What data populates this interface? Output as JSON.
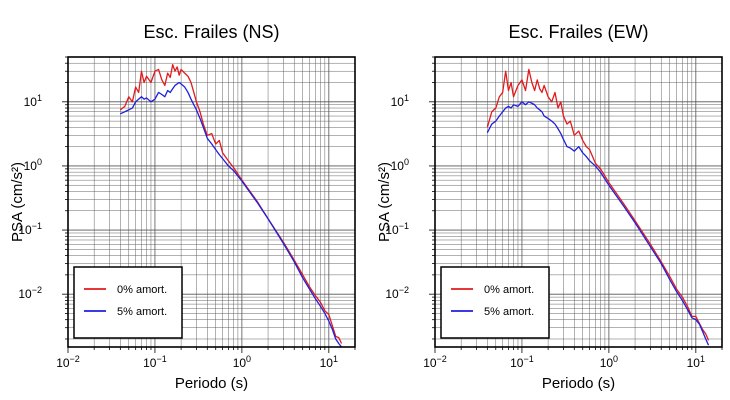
{
  "chart_data": [
    {
      "type": "line",
      "title": "Esc. Frailes (NS)",
      "xlabel": "Periodo (s)",
      "ylabel": "PSA (cm/s²)",
      "xscale": "log",
      "yscale": "log",
      "xlim": [
        0.01,
        20
      ],
      "ylim": [
        0.0015,
        50
      ],
      "grid": true,
      "legend_position": "lower-left",
      "xticks": [
        {
          "base": "10",
          "exp": "−2",
          "value": 0.01
        },
        {
          "base": "10",
          "exp": "−1",
          "value": 0.1
        },
        {
          "base": "10",
          "exp": "0",
          "value": 1
        },
        {
          "base": "10",
          "exp": "1",
          "value": 10
        }
      ],
      "yticks": [
        {
          "base": "10",
          "exp": "−2",
          "value": 0.01
        },
        {
          "base": "10",
          "exp": "−1",
          "value": 0.1
        },
        {
          "base": "10",
          "exp": "0",
          "value": 1
        },
        {
          "base": "10",
          "exp": "1",
          "value": 10
        }
      ],
      "series": [
        {
          "name": "0% amort.",
          "color": "#e31a1c",
          "x": [
            0.04,
            0.045,
            0.05,
            0.055,
            0.06,
            0.065,
            0.07,
            0.075,
            0.08,
            0.09,
            0.1,
            0.11,
            0.12,
            0.13,
            0.14,
            0.15,
            0.16,
            0.17,
            0.18,
            0.19,
            0.2,
            0.22,
            0.24,
            0.26,
            0.28,
            0.3,
            0.33,
            0.36,
            0.4,
            0.45,
            0.5,
            0.55,
            0.6,
            0.7,
            0.8,
            1.0,
            1.5,
            2,
            3,
            4,
            5,
            6,
            7,
            8,
            9,
            10,
            11,
            12,
            13,
            14
          ],
          "y": [
            7.5,
            8.5,
            12,
            10,
            17,
            14,
            30,
            20,
            25,
            20,
            30,
            32,
            22,
            18,
            28,
            24,
            38,
            30,
            35,
            26,
            32,
            28,
            25,
            20,
            14,
            10,
            7,
            4.5,
            3,
            3.2,
            2.2,
            2.5,
            1.6,
            1.2,
            0.95,
            0.6,
            0.28,
            0.15,
            0.065,
            0.034,
            0.02,
            0.013,
            0.0095,
            0.0075,
            0.0055,
            0.0048,
            0.0032,
            0.0022,
            0.0021,
            0.0017
          ]
        },
        {
          "name": "5% amort.",
          "color": "#1f1fe0",
          "x": [
            0.04,
            0.045,
            0.05,
            0.055,
            0.06,
            0.065,
            0.07,
            0.075,
            0.08,
            0.09,
            0.1,
            0.11,
            0.12,
            0.13,
            0.14,
            0.15,
            0.16,
            0.17,
            0.18,
            0.19,
            0.2,
            0.22,
            0.24,
            0.26,
            0.28,
            0.3,
            0.33,
            0.36,
            0.4,
            0.45,
            0.5,
            0.55,
            0.6,
            0.7,
            0.8,
            1.0,
            1.5,
            2,
            3,
            4,
            5,
            6,
            7,
            8,
            9,
            10,
            11,
            12,
            13,
            14
          ],
          "y": [
            6.5,
            7,
            7.5,
            8,
            10,
            11,
            12,
            11,
            11.5,
            10,
            11,
            14,
            13,
            12,
            15,
            14,
            16,
            18,
            19,
            20,
            19,
            17,
            14,
            11,
            9,
            7.5,
            5.5,
            4,
            2.7,
            2.2,
            1.8,
            1.5,
            1.3,
            1.0,
            0.85,
            0.58,
            0.27,
            0.15,
            0.062,
            0.032,
            0.018,
            0.012,
            0.0085,
            0.0065,
            0.005,
            0.0038,
            0.0028,
            0.002,
            0.0017,
            0.0015
          ]
        }
      ]
    },
    {
      "type": "line",
      "title": "Esc. Frailes (EW)",
      "xlabel": "Periodo (s)",
      "ylabel": "PSA (cm/s²)",
      "xscale": "log",
      "yscale": "log",
      "xlim": [
        0.01,
        20
      ],
      "ylim": [
        0.0015,
        50
      ],
      "grid": true,
      "legend_position": "lower-left",
      "xticks": [
        {
          "base": "10",
          "exp": "−2",
          "value": 0.01
        },
        {
          "base": "10",
          "exp": "−1",
          "value": 0.1
        },
        {
          "base": "10",
          "exp": "0",
          "value": 1
        },
        {
          "base": "10",
          "exp": "1",
          "value": 10
        }
      ],
      "yticks": [
        {
          "base": "10",
          "exp": "−2",
          "value": 0.01
        },
        {
          "base": "10",
          "exp": "−1",
          "value": 0.1
        },
        {
          "base": "10",
          "exp": "0",
          "value": 1
        },
        {
          "base": "10",
          "exp": "1",
          "value": 10
        }
      ],
      "series": [
        {
          "name": "0% amort.",
          "color": "#e31a1c",
          "x": [
            0.04,
            0.045,
            0.05,
            0.055,
            0.06,
            0.065,
            0.07,
            0.075,
            0.08,
            0.09,
            0.1,
            0.11,
            0.12,
            0.13,
            0.14,
            0.15,
            0.16,
            0.17,
            0.18,
            0.2,
            0.22,
            0.24,
            0.26,
            0.28,
            0.3,
            0.33,
            0.36,
            0.4,
            0.45,
            0.5,
            0.55,
            0.6,
            0.7,
            0.8,
            1.0,
            1.5,
            2,
            3,
            4,
            5,
            6,
            7,
            8,
            9,
            10,
            11,
            12,
            13,
            14
          ],
          "y": [
            4,
            7,
            8,
            12,
            14,
            30,
            15,
            20,
            12,
            18,
            22,
            15,
            32,
            20,
            15,
            22,
            16,
            14,
            18,
            12,
            10,
            14,
            8,
            10,
            6,
            4.5,
            5,
            3,
            3.5,
            2.5,
            2.0,
            1.8,
            1.1,
            0.9,
            0.55,
            0.25,
            0.14,
            0.06,
            0.032,
            0.019,
            0.012,
            0.009,
            0.0065,
            0.0045,
            0.0045,
            0.0035,
            0.0028,
            0.0024,
            0.0019
          ]
        },
        {
          "name": "5% amort.",
          "color": "#1f1fe0",
          "x": [
            0.04,
            0.045,
            0.05,
            0.055,
            0.06,
            0.065,
            0.07,
            0.075,
            0.08,
            0.09,
            0.1,
            0.11,
            0.12,
            0.13,
            0.14,
            0.15,
            0.16,
            0.17,
            0.18,
            0.2,
            0.22,
            0.24,
            0.26,
            0.28,
            0.3,
            0.33,
            0.36,
            0.4,
            0.45,
            0.5,
            0.55,
            0.6,
            0.7,
            0.8,
            1.0,
            1.5,
            2,
            3,
            4,
            5,
            6,
            7,
            8,
            9,
            10,
            11,
            12,
            13,
            14
          ],
          "y": [
            3.3,
            4.5,
            5,
            6,
            7,
            8,
            8.5,
            8,
            9,
            8.5,
            10,
            9,
            10,
            9.5,
            9,
            8,
            7.5,
            7,
            6,
            5.5,
            5,
            4.5,
            3.8,
            3.2,
            2.6,
            2.0,
            1.9,
            1.7,
            2.0,
            1.6,
            1.4,
            1.2,
            1.0,
            0.8,
            0.5,
            0.23,
            0.13,
            0.055,
            0.03,
            0.017,
            0.011,
            0.008,
            0.0058,
            0.0043,
            0.004,
            0.0034,
            0.0026,
            0.002,
            0.0016
          ]
        }
      ]
    }
  ]
}
